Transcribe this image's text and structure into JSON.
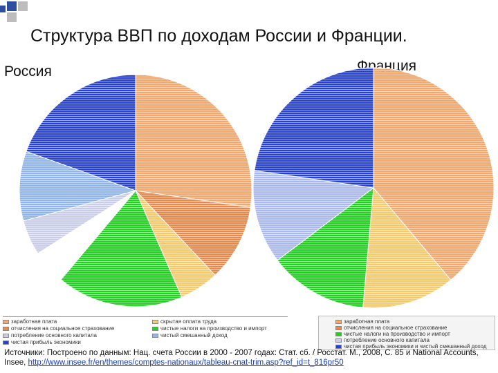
{
  "title": "Структура ВВП по доходам России и Франции.",
  "colors": {
    "deco_blue": "#2d4f9e",
    "deco_gray": "#bdbdbd",
    "wages": "#f5a66b",
    "hidden_wages": "#f6c96b",
    "social_contributions": "#e8884a",
    "net_taxes": "#1ed21e",
    "fixed_capital": "#c9cde8",
    "mixed_income": "#8fb4ee",
    "net_profit": "#2540d8"
  },
  "legend_ru": [
    {
      "label": "заработная плата",
      "key": "wages"
    },
    {
      "label": "скрытая оплата труда",
      "key": "hidden_wages"
    },
    {
      "label": "отчисления на социальное страхование",
      "key": "social_contributions"
    },
    {
      "label": "чистые налоги на производство и импорт",
      "key": "net_taxes"
    },
    {
      "label": "потребление основного капитала",
      "key": "fixed_capital"
    },
    {
      "label": "чистый смешанный доход",
      "key": "mixed_income"
    },
    {
      "label": "чистая прибыль экономики",
      "key": "net_profit"
    }
  ],
  "legend_fr": [
    {
      "label": "заработная плата",
      "key": "wages"
    },
    {
      "label": "отчисления на социальное страхование",
      "key": "social_contributions"
    },
    {
      "label": "чистые налоги на производство и импорт",
      "key": "net_taxes"
    },
    {
      "label": "потребление основного капитала",
      "key": "fixed_capital"
    },
    {
      "label": "чистая прибыль экономики и чистый смешанный доход",
      "key": "net_profit"
    }
  ],
  "source": {
    "text": "Источники: Построено по данным: Нац. счета России в 2000 - 2007 годах: Стат. сб. / Росстат. М., 2008, С. 85 и National Accounts, Insee,",
    "link": "http://www.insee.fr/en/themes/comptes-nationaux/tableau-cnat-trim.asp?ref_id=t_816pr50"
  },
  "chart_data": [
    {
      "type": "pie",
      "title": "Россия",
      "slices": [
        {
          "label": "заработная плата",
          "value": 27.3,
          "color": "#f5a66b"
        },
        {
          "label": "отчисления на социальное страхование",
          "value": 10.7,
          "color": "#e8884a"
        },
        {
          "label": "скрытая оплата труда",
          "value": 5.5,
          "color": "#f6c96b"
        },
        {
          "label": "чистые налоги на производство и импорт",
          "value": 17.6,
          "color": "#1ed21e"
        },
        {
          "label": "чистый смешанный доход",
          "value": 4.8,
          "color": "#ffffff"
        },
        {
          "label": "потребление основного капитала",
          "value": 4.9,
          "color": "#c9cde8"
        },
        {
          "label": "потребление основного капитала",
          "value": 9.7,
          "color": "#8fb4ee"
        },
        {
          "label": "чистая прибыль экономики",
          "value": 19.5,
          "color": "#2540d8"
        }
      ]
    },
    {
      "type": "pie",
      "title": "Франция",
      "slices": [
        {
          "label": "заработная плата",
          "value": 38.9,
          "color": "#f5a66b"
        },
        {
          "label": "отчисления на социальное страхование",
          "value": 12.5,
          "color": "#f6c96b"
        },
        {
          "label": "чистые налоги на производство и импорт",
          "value": 13.3,
          "color": "#1ed21e"
        },
        {
          "label": "потребление основного капитала",
          "value": 12.6,
          "color": "#a9b8f0"
        },
        {
          "label": "чистая прибыль экономики и чистый смешанный доход",
          "value": 22.7,
          "color": "#2540d8"
        }
      ]
    }
  ]
}
